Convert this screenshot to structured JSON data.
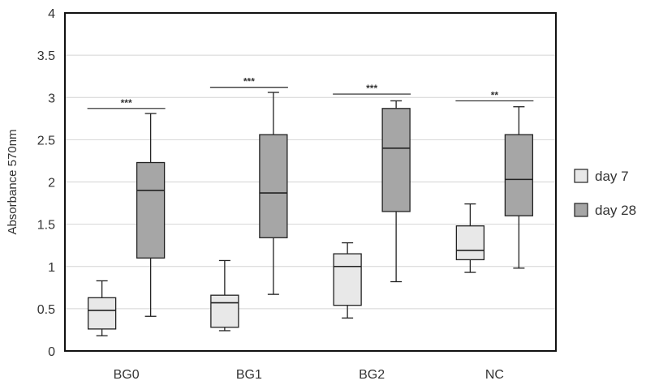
{
  "chart_data": {
    "type": "box",
    "title": "",
    "xlabel": "",
    "ylabel": "Absorbance 570nm",
    "ylim": [
      0,
      4
    ],
    "yticks": [
      "0",
      "0.5",
      "1",
      "1.5",
      "2",
      "2.5",
      "3",
      "3.5",
      "4"
    ],
    "grid": true,
    "legend_position": "right",
    "categories": [
      "BG0",
      "BG1",
      "BG2",
      "NC"
    ],
    "series": [
      {
        "name": "day 7",
        "color": "#e8e8e8",
        "boxes": [
          {
            "min": 0.18,
            "q1": 0.26,
            "median": 0.48,
            "q3": 0.63,
            "max": 0.83
          },
          {
            "min": 0.24,
            "q1": 0.28,
            "median": 0.57,
            "q3": 0.66,
            "max": 1.07
          },
          {
            "min": 0.39,
            "q1": 0.54,
            "median": 1.0,
            "q3": 1.15,
            "max": 1.28
          },
          {
            "min": 0.93,
            "q1": 1.08,
            "median": 1.19,
            "q3": 1.48,
            "max": 1.74
          }
        ]
      },
      {
        "name": "day 28",
        "color": "#a6a6a6",
        "boxes": [
          {
            "min": 0.41,
            "q1": 1.1,
            "median": 1.9,
            "q3": 2.23,
            "max": 2.81
          },
          {
            "min": 0.67,
            "q1": 1.34,
            "median": 1.87,
            "q3": 2.56,
            "max": 3.06
          },
          {
            "min": 0.82,
            "q1": 1.65,
            "median": 2.4,
            "q3": 2.87,
            "max": 2.96
          },
          {
            "min": 0.98,
            "q1": 1.6,
            "median": 2.03,
            "q3": 2.56,
            "max": 2.89
          }
        ]
      }
    ],
    "significance": [
      {
        "category": "BG0",
        "label": "***",
        "y": 2.87
      },
      {
        "category": "BG1",
        "label": "***",
        "y": 3.12
      },
      {
        "category": "BG2",
        "label": "***",
        "y": 3.04
      },
      {
        "category": "NC",
        "label": "**",
        "y": 2.96
      }
    ]
  }
}
